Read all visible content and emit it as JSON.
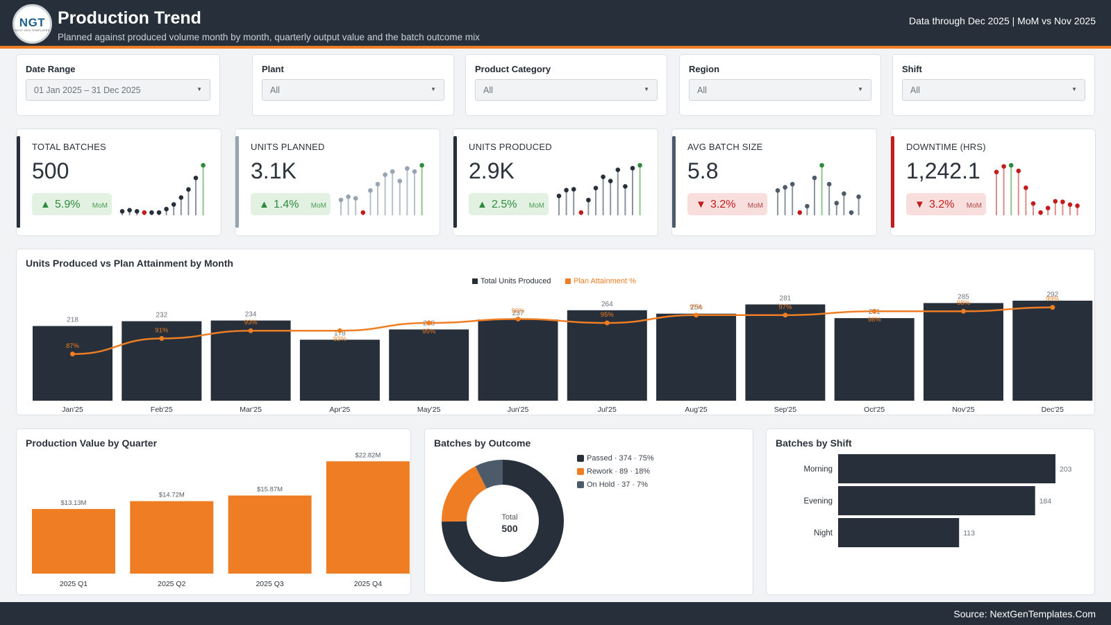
{
  "header": {
    "logo_text": "NGT",
    "logo_sub": "NEXT GEN TEMPLATES",
    "title": "Production Trend",
    "subtitle": "Planned against produced volume month by month, quarterly output value and the batch outcome mix",
    "data_through": "Data through Dec 2025 | MoM vs Nov 2025"
  },
  "filters": [
    {
      "label": "Date Range",
      "value": "01 Jan 2025 – 31 Dec 2025"
    },
    {
      "label": "Plant",
      "value": "All"
    },
    {
      "label": "Product Category",
      "value": "All"
    },
    {
      "label": "Region",
      "value": "All"
    },
    {
      "label": "Shift",
      "value": "All"
    }
  ],
  "kpis": [
    {
      "label": "TOTAL BATCHES",
      "value": "500",
      "change": "5.9%",
      "direction": "up",
      "mom": "MoM",
      "accent": "#27303a",
      "stem_color": "#27303a",
      "spark": [
        18,
        19,
        18,
        17,
        17,
        17,
        20,
        24,
        30,
        37,
        47,
        58
      ]
    },
    {
      "label": "UNITS PLANNED",
      "value": "3.1K",
      "change": "1.4%",
      "direction": "up",
      "mom": "MoM",
      "accent": "#95a3b3",
      "stem_color": "#95a3b3",
      "spark": [
        240,
        242,
        241,
        232,
        246,
        250,
        256,
        258,
        252,
        260,
        258,
        262
      ]
    },
    {
      "label": "UNITS PRODUCED",
      "value": "2.9K",
      "change": "2.5%",
      "direction": "up",
      "mom": "MoM",
      "accent": "#27303a",
      "stem_color": "#27303a",
      "spark": [
        218,
        232,
        234,
        178,
        208,
        237,
        264,
        254,
        281,
        241,
        285,
        292
      ]
    },
    {
      "label": "AVG BATCH SIZE",
      "value": "5.8",
      "change": "3.2%",
      "direction": "down",
      "mom": "MoM",
      "accent": "#4c5a69",
      "stem_color": "#4c5a69",
      "spark": [
        5.9,
        6.0,
        6.1,
        5.2,
        5.4,
        6.3,
        6.7,
        6.1,
        5.5,
        5.8,
        5.2,
        5.7
      ]
    },
    {
      "label": "DOWNTIME (HRS)",
      "value": "1,242.1",
      "change": "3.2%",
      "direction": "down",
      "mom": "MoM",
      "accent": "#c21c1c",
      "stem_color": "#c21c1c",
      "spark": [
        138,
        148,
        150,
        140,
        110,
        82,
        66,
        74,
        86,
        85,
        80,
        78
      ]
    }
  ],
  "monthly_chart": {
    "title": "Units Produced vs Plan Attainment by Month",
    "legend": {
      "bar": "Total Units Produced",
      "line": "Plan Attainment %"
    }
  },
  "quarter_chart": {
    "title": "Production Value by Quarter"
  },
  "outcome_chart": {
    "title": "Batches by Outcome",
    "total_label": "Total",
    "total_value": "500",
    "legend": [
      "Passed · 374 · 75%",
      "Rework · 89 · 18%",
      "On Hold · 37 · 7%"
    ]
  },
  "shift_chart": {
    "title": "Batches by Shift"
  },
  "footer": {
    "source": "Source: NextGenTemplates.Com"
  },
  "colors": {
    "dark": "#27303a",
    "orange": "#ee7d23",
    "slate": "#4c5a69",
    "green": "#2e8b3e",
    "red": "#c21c1c"
  },
  "chart_data": [
    {
      "type": "bar",
      "title": "Units Produced vs Plan Attainment by Month",
      "categories": [
        "Jan'25",
        "Feb'25",
        "Mar'25",
        "Apr'25",
        "May'25",
        "Jun'25",
        "Jul'25",
        "Aug'25",
        "Sep'25",
        "Oct'25",
        "Nov'25",
        "Dec'25"
      ],
      "series": [
        {
          "name": "Total Units Produced",
          "type": "bar",
          "values": [
            218,
            232,
            234,
            178,
            208,
            237,
            264,
            254,
            281,
            241,
            285,
            292
          ]
        },
        {
          "name": "Plan Attainment %",
          "type": "line",
          "values": [
            87,
            91,
            93,
            93,
            95,
            96,
            95,
            97,
            97,
            98,
            98,
            99
          ],
          "labels": [
            "87%",
            "91%",
            "93%",
            "93%",
            "95%",
            "96%",
            "95%",
            "97%",
            "97%",
            "98%",
            "98%",
            "99%"
          ]
        }
      ],
      "legend": "top-center"
    },
    {
      "type": "bar",
      "title": "Production Value by Quarter",
      "categories": [
        "2025 Q1",
        "2025 Q2",
        "2025 Q3",
        "2025 Q4"
      ],
      "values": [
        13.13,
        14.72,
        15.87,
        22.82
      ],
      "labels": [
        "$13.13M",
        "$14.72M",
        "$15.87M",
        "$22.82M"
      ]
    },
    {
      "type": "pie",
      "title": "Batches by Outcome",
      "categories": [
        "Passed",
        "Rework",
        "On Hold"
      ],
      "values": [
        374,
        89,
        37
      ],
      "colors": [
        "#27303a",
        "#ee7d23",
        "#4c5a69"
      ]
    },
    {
      "type": "bar",
      "title": "Batches by Shift",
      "categories": [
        "Morning",
        "Evening",
        "Night"
      ],
      "values": [
        203,
        184,
        113
      ]
    }
  ]
}
